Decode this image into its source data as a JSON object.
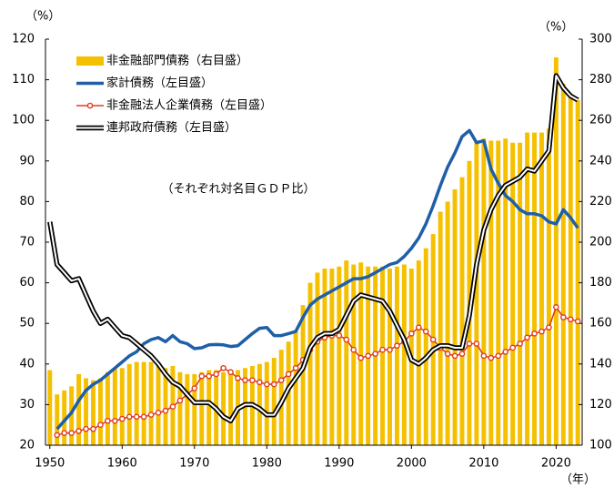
{
  "chart_data": {
    "type": "bar-line",
    "annotation": "（それぞれ対名目ＧＤＰ比）",
    "y_label": "（%）",
    "y2_label": "（%）",
    "x_label": "（年）",
    "x": [
      1950,
      1951,
      1952,
      1953,
      1954,
      1955,
      1956,
      1957,
      1958,
      1959,
      1960,
      1961,
      1962,
      1963,
      1964,
      1965,
      1966,
      1967,
      1968,
      1969,
      1970,
      1971,
      1972,
      1973,
      1974,
      1975,
      1976,
      1977,
      1978,
      1979,
      1980,
      1981,
      1982,
      1983,
      1984,
      1985,
      1986,
      1987,
      1988,
      1989,
      1990,
      1991,
      1992,
      1993,
      1994,
      1995,
      1996,
      1997,
      1998,
      1999,
      2000,
      2001,
      2002,
      2003,
      2004,
      2005,
      2006,
      2007,
      2008,
      2009,
      2010,
      2011,
      2012,
      2013,
      2014,
      2015,
      2016,
      2017,
      2018,
      2019,
      2020,
      2021,
      2022,
      2023
    ],
    "xlim": [
      1949.4,
      2023.6
    ],
    "xticks": [
      1950,
      1960,
      1970,
      1980,
      1990,
      2000,
      2010,
      2020
    ],
    "ylim": [
      20,
      120
    ],
    "yticks": [
      20,
      30,
      40,
      50,
      60,
      70,
      80,
      90,
      100,
      110,
      120
    ],
    "y2lim": [
      100,
      300
    ],
    "y2ticks": [
      100,
      120,
      140,
      160,
      180,
      200,
      220,
      240,
      260,
      280,
      300
    ],
    "legend": "upper-left",
    "series": [
      {
        "name": "非金融部門債務（右目盛）",
        "kind": "bar",
        "axis": "y2",
        "color": "#f5c000",
        "values": [
          137,
          125,
          127,
          129,
          135,
          133,
          132,
          133,
          136,
          138,
          138,
          140,
          141,
          141,
          141,
          140,
          138,
          139,
          136,
          135,
          135,
          136,
          137,
          137,
          136,
          137,
          137,
          138,
          139,
          140,
          141,
          143,
          147,
          151,
          156,
          169,
          180,
          185,
          187,
          187,
          188,
          191,
          189,
          190,
          188,
          188,
          188,
          187,
          188,
          189,
          187,
          191,
          197,
          204,
          215,
          220,
          226,
          232,
          240,
          250,
          251,
          250,
          250,
          251,
          249,
          249,
          254,
          254,
          254,
          256,
          291,
          278,
          273,
          270
        ]
      },
      {
        "name": "家計債務（左目盛）",
        "kind": "line",
        "color": "#1f5fa8",
        "values": [
          null,
          24,
          26,
          28,
          31,
          33.5,
          35,
          36,
          37.5,
          39,
          40.5,
          42,
          43,
          45,
          46,
          46.5,
          45.5,
          47,
          45.5,
          45,
          43.8,
          44,
          44.7,
          44.8,
          44.7,
          44.3,
          44.5,
          46,
          47.5,
          48.8,
          49,
          47,
          47,
          47.5,
          48,
          51.5,
          54.5,
          56,
          57,
          58,
          59,
          60,
          61,
          61,
          61.5,
          62.5,
          63.5,
          64.5,
          65,
          66.5,
          68.5,
          71,
          74.5,
          79,
          84,
          88.5,
          92,
          96,
          97.5,
          94.5,
          95,
          88,
          84.5,
          81.5,
          80,
          78,
          77,
          77,
          76.5,
          75,
          74.5,
          78,
          76,
          73.5
        ]
      },
      {
        "name": "非金融法人企業債務（左目盛）",
        "kind": "marker-line",
        "color": "#e03c1e",
        "values": [
          null,
          22.5,
          23,
          23,
          23.5,
          24,
          24,
          25,
          26,
          26,
          26.5,
          27,
          27,
          27,
          27.5,
          28,
          28.5,
          29.5,
          31,
          32.5,
          34,
          37,
          37,
          37.5,
          39,
          38,
          36.5,
          36,
          36,
          35.5,
          35,
          35,
          36,
          37.5,
          39,
          41,
          43.5,
          45.5,
          46.5,
          47,
          47,
          46,
          43.5,
          41.5,
          42,
          42.5,
          43.5,
          43.5,
          44.5,
          45.5,
          47.5,
          49,
          48,
          46,
          44,
          42.5,
          42,
          42.5,
          45,
          45,
          42,
          41.5,
          42,
          43,
          44,
          45,
          46.5,
          47.5,
          48,
          49,
          54,
          51.5,
          51,
          50.5
        ]
      },
      {
        "name": "連邦政府債務（左目盛）",
        "kind": "double-line",
        "color": "#000000",
        "values": [
          75,
          64.5,
          62.5,
          60.5,
          61,
          57,
          53,
          50,
          51,
          49,
          47,
          46.5,
          45,
          43.5,
          42,
          40,
          37.5,
          35.5,
          34.5,
          32.5,
          30.5,
          30.5,
          30.5,
          29,
          27,
          26,
          29,
          30,
          30,
          29,
          27.5,
          27.5,
          30.5,
          34,
          36.5,
          39,
          44,
          46.5,
          47.5,
          47.5,
          48.5,
          52,
          55.5,
          57,
          56.5,
          56,
          55.5,
          53,
          49.5,
          46,
          41,
          40,
          41.5,
          43.5,
          44.5,
          44.5,
          44,
          44,
          52,
          64.5,
          73,
          78,
          81.5,
          84,
          85,
          86,
          88,
          87.5,
          90,
          92.5,
          111,
          108,
          106,
          105
        ]
      }
    ]
  }
}
